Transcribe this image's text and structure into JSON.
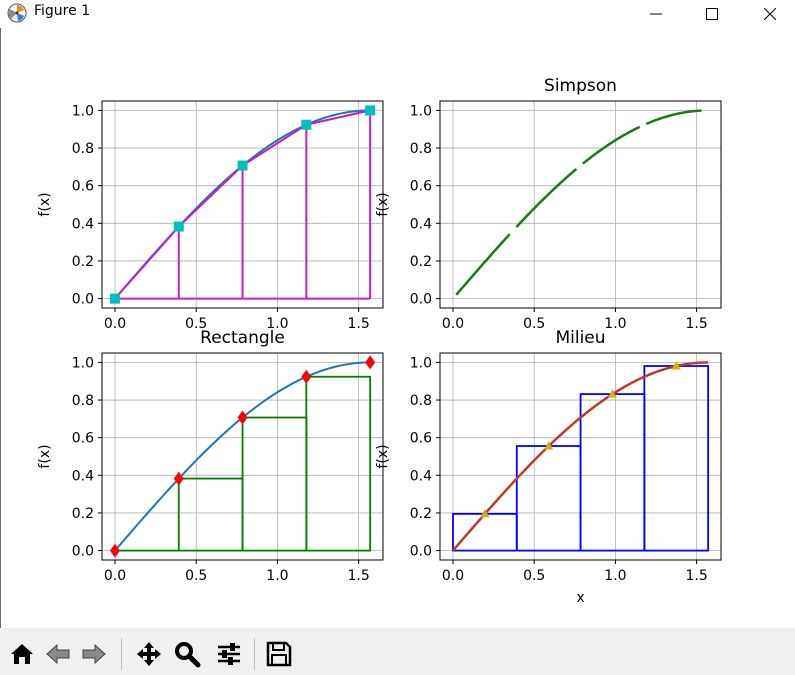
{
  "window": {
    "title": "Figure 1"
  },
  "colors": {
    "grid": "#b0b0b0",
    "curve_blue": "#1f77b4",
    "curve_green": "#1a7a1a",
    "curve_red": "#c0392b",
    "magenta": "#c020c0",
    "cyan": "#00bfbf",
    "green_rect": "#008000",
    "blue_rect": "#0000ff",
    "red_marker": "#ff0000",
    "yellow_marker": "#d4b000"
  },
  "toolbar": {
    "buttons": [
      {
        "name": "home-button",
        "icon": "home-icon"
      },
      {
        "name": "back-button",
        "icon": "arrow-left-icon"
      },
      {
        "name": "forward-button",
        "icon": "arrow-right-icon"
      },
      {
        "name": "pan-button",
        "icon": "move-icon"
      },
      {
        "name": "zoom-button",
        "icon": "magnifier-icon"
      },
      {
        "name": "configure-subplots-button",
        "icon": "sliders-icon"
      },
      {
        "name": "save-button",
        "icon": "floppy-disk-icon"
      }
    ]
  },
  "chart_data": [
    {
      "type": "line",
      "title": "",
      "xlabel": "",
      "ylabel": "f(x)",
      "xlim": [
        -0.08,
        1.65
      ],
      "ylim": [
        -0.05,
        1.05
      ],
      "xticks": [
        0.0,
        0.5,
        1.0,
        1.5
      ],
      "xtick_labels": [
        "0.0",
        "0.5",
        "1.0",
        "1.5"
      ],
      "yticks": [
        0.0,
        0.2,
        0.4,
        0.6,
        0.8,
        1.0
      ],
      "ytick_labels": [
        "0.0",
        "0.2",
        "0.4",
        "0.6",
        "0.8",
        "1.0"
      ],
      "grid": true,
      "curve": {
        "function": "sin(x)",
        "x_range": [
          0,
          1.5708
        ]
      },
      "trapezoid_nodes": {
        "x": [
          0,
          0.3927,
          0.7854,
          1.1781,
          1.5708
        ],
        "y": [
          0,
          0.3827,
          0.7071,
          0.9239,
          1.0
        ]
      },
      "vertical_lines_x": [
        0.3927,
        0.7854,
        1.1781,
        1.5708
      ],
      "marker": "square"
    },
    {
      "type": "line",
      "title": "Simpson",
      "xlabel": "",
      "ylabel": "f(x)",
      "xlim": [
        -0.08,
        1.65
      ],
      "ylim": [
        -0.05,
        1.05
      ],
      "xticks": [
        0.0,
        0.5,
        1.0,
        1.5
      ],
      "xtick_labels": [
        "0.0",
        "0.5",
        "1.0",
        "1.5"
      ],
      "yticks": [
        0.0,
        0.2,
        0.4,
        0.6,
        0.8,
        1.0
      ],
      "ytick_labels": [
        "0.0",
        "0.2",
        "0.4",
        "0.6",
        "0.8",
        "1.0"
      ],
      "grid": true,
      "curve": {
        "function": "sin(x)",
        "x_range": [
          0.02,
          1.53
        ]
      },
      "segments": [
        [
          0.02,
          0.35
        ],
        [
          0.39,
          0.76
        ],
        [
          0.8,
          1.15
        ],
        [
          1.19,
          1.53
        ]
      ]
    },
    {
      "type": "line",
      "title": "Rectangle",
      "xlabel": "",
      "ylabel": "f(x)",
      "xlim": [
        -0.08,
        1.65
      ],
      "ylim": [
        -0.05,
        1.05
      ],
      "xticks": [
        0.0,
        0.5,
        1.0,
        1.5
      ],
      "xtick_labels": [
        "0.0",
        "0.5",
        "1.0",
        "1.5"
      ],
      "yticks": [
        0.0,
        0.2,
        0.4,
        0.6,
        0.8,
        1.0
      ],
      "ytick_labels": [
        "0.0",
        "0.2",
        "0.4",
        "0.6",
        "0.8",
        "1.0"
      ],
      "grid": true,
      "curve": {
        "function": "sin(x)",
        "x_range": [
          0,
          1.5708
        ]
      },
      "markers": {
        "x": [
          0,
          0.3927,
          0.7854,
          1.1781,
          1.5708
        ],
        "y": [
          0,
          0.3827,
          0.7071,
          0.9239,
          1.0
        ],
        "shape": "diamond"
      },
      "rectangles": [
        {
          "x0": 0,
          "x1": 0.3927,
          "h": 0
        },
        {
          "x0": 0.3927,
          "x1": 0.7854,
          "h": 0.3827
        },
        {
          "x0": 0.7854,
          "x1": 1.1781,
          "h": 0.7071
        },
        {
          "x0": 1.1781,
          "x1": 1.5708,
          "h": 0.9239
        }
      ]
    },
    {
      "type": "line",
      "title": "Milieu",
      "xlabel": "x",
      "ylabel": "f(x)",
      "xlim": [
        -0.08,
        1.65
      ],
      "ylim": [
        -0.05,
        1.05
      ],
      "xticks": [
        0.0,
        0.5,
        1.0,
        1.5
      ],
      "xtick_labels": [
        "0.0",
        "0.5",
        "1.0",
        "1.5"
      ],
      "yticks": [
        0.0,
        0.2,
        0.4,
        0.6,
        0.8,
        1.0
      ],
      "ytick_labels": [
        "0.0",
        "0.2",
        "0.4",
        "0.6",
        "0.8",
        "1.0"
      ],
      "grid": true,
      "curve": {
        "function": "sin(x)",
        "x_range": [
          0,
          1.5708
        ]
      },
      "markers": {
        "x": [
          0.1963,
          0.589,
          0.9817,
          1.3744
        ],
        "y": [
          0.1951,
          0.5556,
          0.8315,
          0.9808
        ],
        "shape": "triangle"
      },
      "rectangles": [
        {
          "x0": 0,
          "x1": 0.3927,
          "h": 0.1951
        },
        {
          "x0": 0.3927,
          "x1": 0.7854,
          "h": 0.5556
        },
        {
          "x0": 0.7854,
          "x1": 1.1781,
          "h": 0.8315
        },
        {
          "x0": 1.1781,
          "x1": 1.5708,
          "h": 0.9808
        }
      ]
    }
  ]
}
